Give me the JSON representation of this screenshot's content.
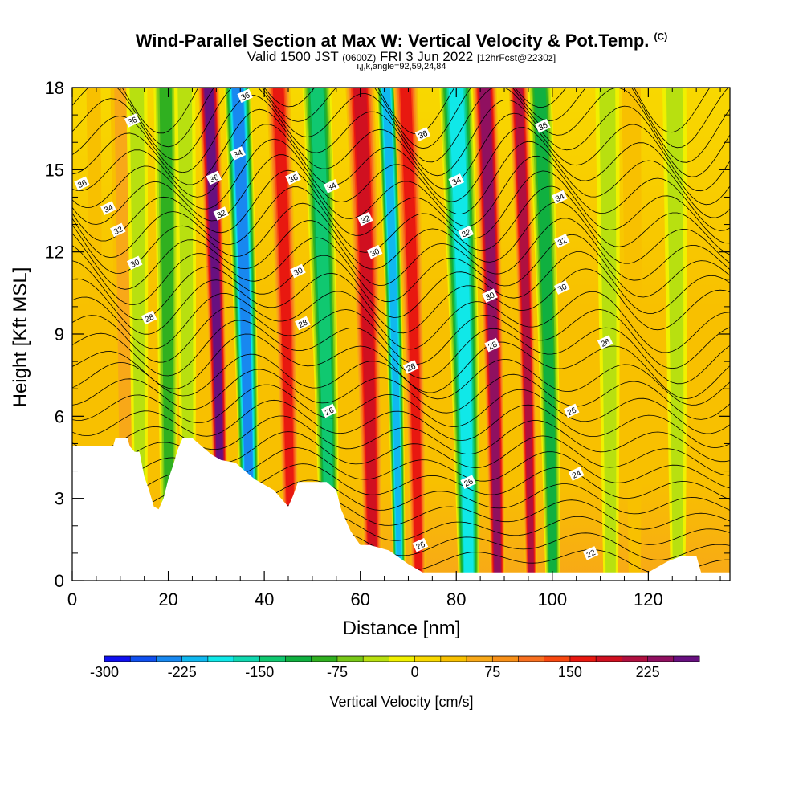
{
  "title": {
    "main": "Wind-Parallel Section at Max W: Vertical Velocity & Pot.Temp.",
    "copyright": "(C)",
    "valid_pre": "Valid 1500 JST",
    "valid_utc": "(0600Z)",
    "valid_date": "FRI 3 Jun 2022",
    "forecast": "[12hrFcst@2230z]",
    "indices": "i,j,k,angle=92,59,24,84"
  },
  "chart_data": {
    "type": "heatmap",
    "xlabel": "Distance [nm]",
    "ylabel": "Height [Kft MSL]",
    "xlim": [
      0,
      137
    ],
    "ylim": [
      0,
      18
    ],
    "x_ticks": [
      0,
      20,
      40,
      60,
      80,
      100,
      120
    ],
    "y_ticks": [
      0,
      3,
      6,
      9,
      12,
      15,
      18
    ],
    "colorbar": {
      "label": "Vertical Velocity [cm/s]",
      "levels": [
        -300,
        -275,
        -250,
        -225,
        -200,
        -175,
        -150,
        -125,
        -100,
        -75,
        -50,
        -25,
        0,
        25,
        50,
        75,
        100,
        125,
        150,
        175,
        200,
        225,
        250
      ],
      "tick_labels": [
        "-300",
        "-225",
        "-150",
        "-75",
        "0",
        "75",
        "150",
        "225"
      ],
      "colors": [
        "#1010f0",
        "#1050f0",
        "#1888f0",
        "#10b8f0",
        "#10e8e8",
        "#10d8b0",
        "#10c870",
        "#10b040",
        "#30b020",
        "#78c818",
        "#b8e010",
        "#f0f000",
        "#f8d800",
        "#f8c000",
        "#f8a818",
        "#f89018",
        "#f87020",
        "#f84810",
        "#e81810",
        "#d01020",
        "#b01040",
        "#901060",
        "#681080"
      ]
    },
    "vertical_velocity_bands": [
      {
        "x": 5,
        "w": 1.5,
        "value": 20
      },
      {
        "x": 11,
        "w": 2.5,
        "value": 40
      },
      {
        "x": 14,
        "w": 2.2,
        "value": -40
      },
      {
        "x": 20,
        "w": 2.5,
        "value": -110
      },
      {
        "x": 24,
        "w": 2.2,
        "value": -60
      },
      {
        "x": 30.5,
        "w": 2.2,
        "value": 240
      },
      {
        "x": 36.5,
        "w": 2.8,
        "value": -260
      },
      {
        "x": 45,
        "w": 2.5,
        "value": 160
      },
      {
        "x": 53,
        "w": 3.0,
        "value": -140
      },
      {
        "x": 62,
        "w": 3.0,
        "value": 180
      },
      {
        "x": 67.5,
        "w": 2.0,
        "value": -220
      },
      {
        "x": 71.5,
        "w": 2.5,
        "value": 160
      },
      {
        "x": 82,
        "w": 3.5,
        "value": -210
      },
      {
        "x": 88,
        "w": 2.5,
        "value": 220
      },
      {
        "x": 95,
        "w": 2.0,
        "value": 200
      },
      {
        "x": 99.5,
        "w": 2.5,
        "value": -120
      },
      {
        "x": 112,
        "w": 2.5,
        "value": -40
      },
      {
        "x": 117,
        "w": 2.0,
        "value": 35
      },
      {
        "x": 126,
        "w": 2.5,
        "value": -50
      }
    ],
    "terrain": [
      [
        0,
        4.9
      ],
      [
        8.5,
        4.9
      ],
      [
        9,
        5.2
      ],
      [
        11.5,
        5.2
      ],
      [
        12,
        4.9
      ],
      [
        13,
        4.7
      ],
      [
        14,
        4.7
      ],
      [
        15,
        3.8
      ],
      [
        16,
        3.3
      ],
      [
        17,
        2.7
      ],
      [
        18,
        2.6
      ],
      [
        19,
        3.0
      ],
      [
        20,
        3.7
      ],
      [
        21,
        4.2
      ],
      [
        22,
        4.8
      ],
      [
        23,
        5.2
      ],
      [
        25,
        5.2
      ],
      [
        27,
        4.9
      ],
      [
        29,
        4.6
      ],
      [
        31,
        4.4
      ],
      [
        34,
        4.3
      ],
      [
        36,
        4.0
      ],
      [
        38,
        3.7
      ],
      [
        40,
        3.5
      ],
      [
        42,
        3.3
      ],
      [
        44,
        2.9
      ],
      [
        45,
        2.7
      ],
      [
        46,
        3.1
      ],
      [
        47,
        3.6
      ],
      [
        53,
        3.6
      ],
      [
        55,
        3.3
      ],
      [
        56,
        2.6
      ],
      [
        58,
        1.8
      ],
      [
        60,
        1.3
      ],
      [
        62,
        1.3
      ],
      [
        66,
        1.1
      ],
      [
        70,
        0.6
      ],
      [
        73,
        0.3
      ],
      [
        120,
        0.3
      ],
      [
        124,
        0.7
      ],
      [
        127,
        0.9
      ],
      [
        130,
        0.9
      ],
      [
        131,
        0.3
      ],
      [
        137,
        0.3
      ]
    ],
    "theta_label_values": [
      "36",
      "34",
      "32",
      "30",
      "28",
      "26",
      "24",
      "22"
    ],
    "contour_labels": [
      {
        "text": "36",
        "x": 12.5,
        "y": 16.8
      },
      {
        "text": "36",
        "x": 2,
        "y": 14.5
      },
      {
        "text": "34",
        "x": 7.5,
        "y": 13.6
      },
      {
        "text": "32",
        "x": 9.5,
        "y": 12.8
      },
      {
        "text": "30",
        "x": 13,
        "y": 11.6
      },
      {
        "text": "28",
        "x": 16,
        "y": 9.6
      },
      {
        "text": "36",
        "x": 36,
        "y": 17.7
      },
      {
        "text": "34",
        "x": 34.5,
        "y": 15.6
      },
      {
        "text": "36",
        "x": 29.5,
        "y": 14.7
      },
      {
        "text": "32",
        "x": 31,
        "y": 13.4
      },
      {
        "text": "36",
        "x": 46,
        "y": 14.7
      },
      {
        "text": "34",
        "x": 54,
        "y": 14.4
      },
      {
        "text": "32",
        "x": 61,
        "y": 13.2
      },
      {
        "text": "30",
        "x": 63,
        "y": 12.0
      },
      {
        "text": "30",
        "x": 47,
        "y": 11.3
      },
      {
        "text": "28",
        "x": 48,
        "y": 9.4
      },
      {
        "text": "26",
        "x": 53.5,
        "y": 6.2
      },
      {
        "text": "36",
        "x": 73,
        "y": 16.3
      },
      {
        "text": "34",
        "x": 80,
        "y": 14.6
      },
      {
        "text": "32",
        "x": 82,
        "y": 12.7
      },
      {
        "text": "30",
        "x": 87,
        "y": 10.4
      },
      {
        "text": "28",
        "x": 87.5,
        "y": 8.6
      },
      {
        "text": "26",
        "x": 70.5,
        "y": 7.8
      },
      {
        "text": "26",
        "x": 82.5,
        "y": 3.6
      },
      {
        "text": "26",
        "x": 72.5,
        "y": 1.3
      },
      {
        "text": "36",
        "x": 98,
        "y": 16.6
      },
      {
        "text": "34",
        "x": 101.5,
        "y": 14.0
      },
      {
        "text": "32",
        "x": 102,
        "y": 12.4
      },
      {
        "text": "30",
        "x": 102,
        "y": 10.7
      },
      {
        "text": "26",
        "x": 104,
        "y": 6.2
      },
      {
        "text": "26",
        "x": 111,
        "y": 8.7
      },
      {
        "text": "24",
        "x": 105,
        "y": 3.9
      },
      {
        "text": "22",
        "x": 108,
        "y": 1.0
      }
    ]
  }
}
